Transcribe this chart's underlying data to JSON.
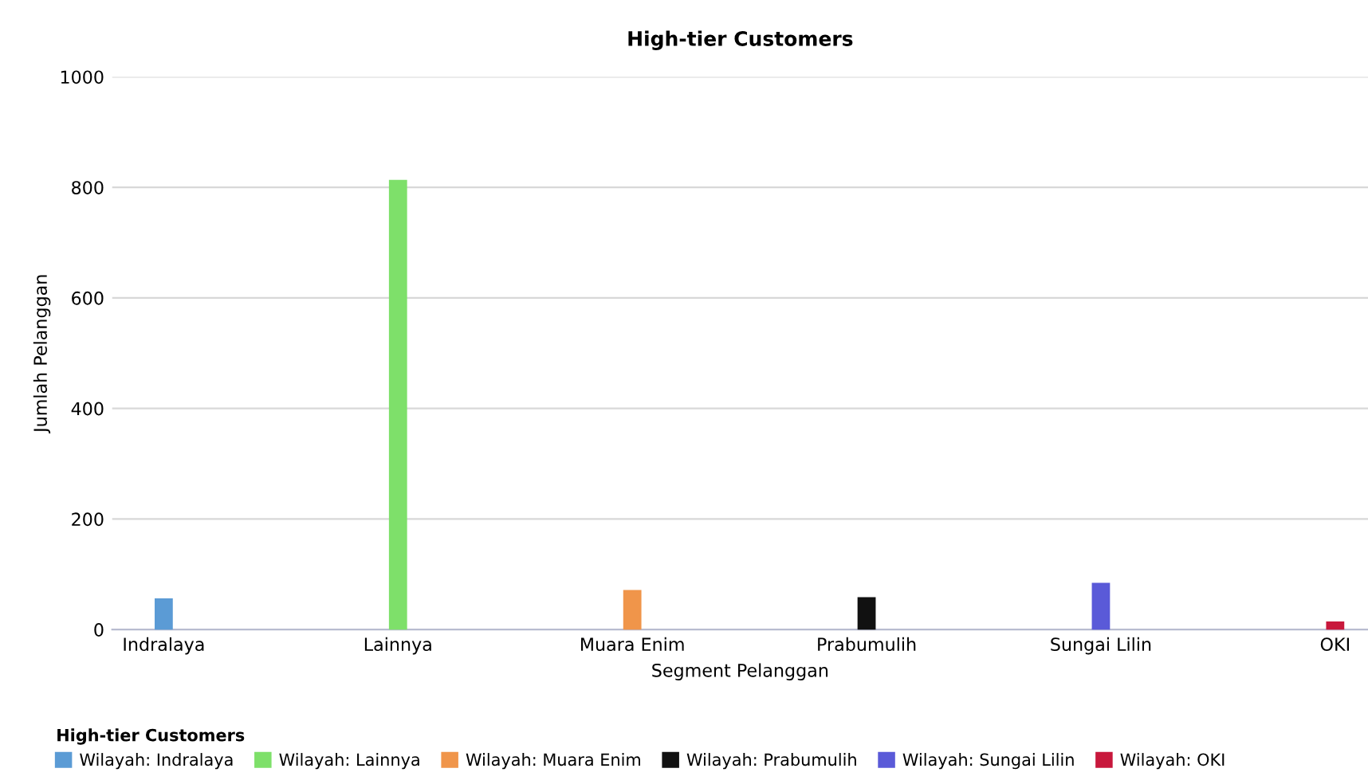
{
  "chart_data": {
    "type": "bar",
    "title": "High-tier Customers",
    "xlabel": "Segment Pelanggan",
    "ylabel": "Jumlah Pelanggan",
    "legend_title": "High-tier Customers",
    "categories": [
      "Indralaya",
      "Lainnya",
      "Muara Enim",
      "Prabumulih",
      "Sungai Lilin",
      "OKI"
    ],
    "series": [
      {
        "name": "Wilayah: Indralaya",
        "color": "#5b9bd5",
        "values": [
          55,
          null,
          null,
          null,
          null,
          null
        ]
      },
      {
        "name": "Wilayah: Lainnya",
        "color": "#7ee06a",
        "values": [
          null,
          812,
          null,
          null,
          null,
          null
        ]
      },
      {
        "name": "Wilayah: Muara Enim",
        "color": "#f0954a",
        "values": [
          null,
          null,
          70,
          null,
          null,
          null
        ]
      },
      {
        "name": "Wilayah: Prabumulih",
        "color": "#111111",
        "values": [
          null,
          null,
          null,
          57,
          null,
          null
        ]
      },
      {
        "name": "Wilayah: Sungai Lilin",
        "color": "#5a5ad8",
        "values": [
          null,
          null,
          null,
          null,
          83,
          null
        ]
      },
      {
        "name": "Wilayah: OKI",
        "color": "#c8183c",
        "values": [
          null,
          null,
          null,
          null,
          null,
          13
        ]
      }
    ],
    "ylim": [
      0,
      1000
    ],
    "yticks": [
      0,
      200,
      400,
      600,
      800,
      1000
    ],
    "grid": "y",
    "legend": "bottom"
  }
}
